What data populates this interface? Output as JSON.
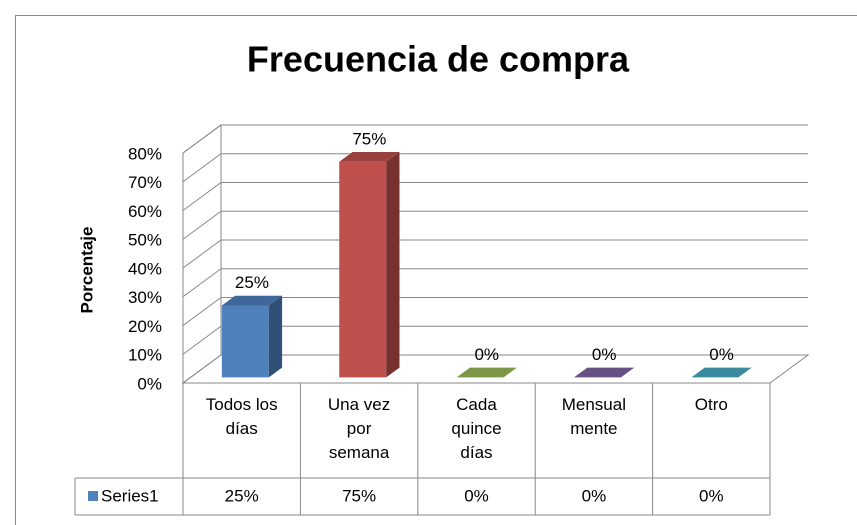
{
  "chart_data": {
    "type": "bar3d",
    "title": "Frecuencia de compra",
    "y_label": "Porcentaje",
    "categories": [
      "Todos los días",
      "Una vez por semana",
      "Cada quince días",
      "Mensual mente",
      "Otro"
    ],
    "series": [
      {
        "name": "Series1",
        "colors": [
          "#4f81bd",
          "#c0504d",
          "#9bbb59",
          "#8064a2",
          "#4bacc6"
        ],
        "values": [
          25,
          75,
          0,
          0,
          0
        ],
        "value_labels": [
          "25%",
          "75%",
          "0%",
          "0%",
          "0%"
        ]
      }
    ],
    "ylim": [
      0,
      80
    ],
    "yticks": [
      {
        "value": 0,
        "label": "0%"
      },
      {
        "value": 10,
        "label": "10%"
      },
      {
        "value": 20,
        "label": "20%"
      },
      {
        "value": 30,
        "label": "30%"
      },
      {
        "value": 40,
        "label": "40%"
      },
      {
        "value": 50,
        "label": "50%"
      },
      {
        "value": 60,
        "label": "60%"
      },
      {
        "value": 70,
        "label": "70%"
      },
      {
        "value": 80,
        "label": "80%"
      }
    ],
    "grid": true,
    "data_table": true
  }
}
